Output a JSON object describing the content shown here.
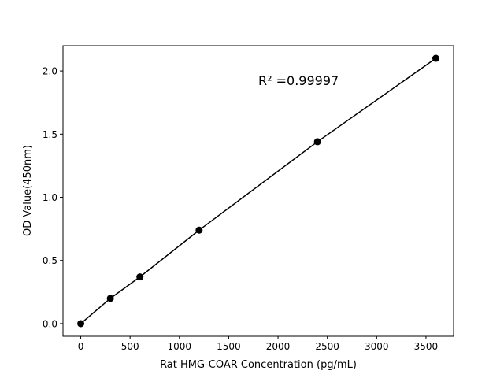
{
  "chart_data": {
    "type": "line",
    "title": "",
    "xlabel": "Rat HMG-COAR Concentration (pg/mL)",
    "ylabel": "OD Value(450nm)",
    "annotation": "R² =0.99997",
    "x": [
      0,
      300,
      600,
      1200,
      2400,
      3600
    ],
    "series": [
      {
        "values": [
          0.0,
          0.2,
          0.37,
          0.74,
          1.44,
          2.1
        ],
        "color": "#000000",
        "marker": "circle"
      }
    ],
    "xlim": [
      -180,
      3780
    ],
    "ylim": [
      -0.1,
      2.2
    ],
    "xticks": [
      0,
      500,
      1000,
      1500,
      2000,
      2500,
      3000,
      3500
    ],
    "xtick_labels": [
      "0",
      "500",
      "1000",
      "1500",
      "2000",
      "2500",
      "3000",
      "3500"
    ],
    "yticks": [
      0.0,
      0.5,
      1.0,
      1.5,
      2.0
    ],
    "ytick_labels": [
      "0.0",
      "0.5",
      "1.0",
      "1.5",
      "2.0"
    ],
    "grid": false,
    "legend": "none"
  }
}
